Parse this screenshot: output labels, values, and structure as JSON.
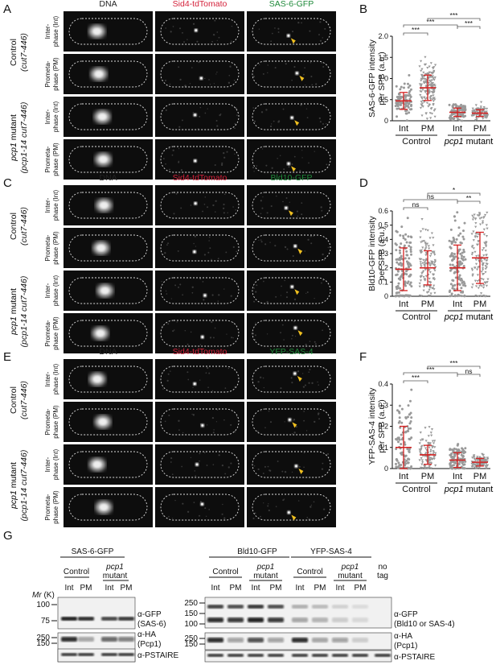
{
  "panel_letters": {
    "A": "A",
    "B": "B",
    "C": "C",
    "D": "D",
    "E": "E",
    "F": "F",
    "G": "G"
  },
  "micro": {
    "rowA": {
      "cols": [
        "DNA",
        "Sid4-tdTomato",
        "SAS-6-GFP"
      ],
      "col_colors": [
        "#222222",
        "#d4213a",
        "#1f8a3a"
      ]
    },
    "rowC": {
      "cols": [
        "DNA",
        "Sid4-tdTomato",
        "Bld10-GFP"
      ],
      "col_colors": [
        "#222222",
        "#d4213a",
        "#1f8a3a"
      ]
    },
    "rowE": {
      "cols": [
        "DNA",
        "Sid4-tdTomato",
        "YFP-SAS-4"
      ],
      "col_colors": [
        "#222222",
        "#d4213a",
        "#1f8a3a"
      ]
    },
    "group_control": {
      "name": "Control",
      "gene": "(cut7-446)"
    },
    "group_mutant": {
      "name_italic": "pcp1",
      "name_rest": " mutant",
      "gene": "(pcp1-14 cut7-446)"
    },
    "phase_int": {
      "l1": "Inter-",
      "l2": "phase (Int)"
    },
    "phase_pm": {
      "l1": "Prometa-",
      "l2": "phase (PM)"
    }
  },
  "chart_data": [
    {
      "type": "scatter",
      "panel": "B",
      "ylabel_l1": "SAS-6-GFP intensity",
      "ylabel_l2": "per SPB (a.u.)",
      "ylim": [
        0,
        2.0
      ],
      "yticks": [
        "0",
        "0.5",
        "1.0",
        "1.5",
        "2.0"
      ],
      "categories": [
        "Int",
        "PM",
        "Int",
        "PM"
      ],
      "groups": [
        {
          "name": "Control"
        },
        {
          "name_italic": "pcp1",
          "name_rest": " mutant"
        }
      ],
      "means": [
        0.47,
        0.78,
        0.2,
        0.18
      ],
      "sds": [
        0.2,
        0.3,
        0.1,
        0.08
      ],
      "n": [
        90,
        160,
        90,
        90
      ],
      "sig": [
        "***",
        "***",
        "***",
        "***"
      ],
      "point_color": "#999999",
      "mean_color": "#d42020"
    },
    {
      "type": "scatter",
      "panel": "D",
      "ylabel_l1": "Bld10-GFP intensity",
      "ylabel_l2": "per SPB (a.u.)",
      "ylim": [
        0,
        0.6
      ],
      "yticks": [
        "0",
        "0.1",
        "0.2",
        "0.3",
        "0.4",
        "0.5",
        "0.6"
      ],
      "categories": [
        "Int",
        "PM",
        "Int",
        "PM"
      ],
      "groups": [
        {
          "name": "Control"
        },
        {
          "name_italic": "pcp1",
          "name_rest": " mutant"
        }
      ],
      "means": [
        0.19,
        0.2,
        0.2,
        0.27
      ],
      "sds": [
        0.15,
        0.12,
        0.16,
        0.18
      ],
      "n": [
        130,
        130,
        130,
        130
      ],
      "sig": [
        "ns",
        "ns",
        "*",
        "**"
      ],
      "point_color": "#999999",
      "mean_color": "#d42020"
    },
    {
      "type": "scatter",
      "panel": "F",
      "ylabel_l1": "YFP-SAS-4 intensity",
      "ylabel_l2": "per SPB (a.u.)",
      "ylim": [
        0,
        0.4
      ],
      "yticks": [
        "0",
        "0.1",
        "0.2",
        "0.3",
        "0.4"
      ],
      "categories": [
        "Int",
        "PM",
        "Int",
        "PM"
      ],
      "groups": [
        {
          "name": "Control"
        },
        {
          "name_italic": "pcp1",
          "name_rest": " mutant"
        }
      ],
      "means": [
        0.1,
        0.065,
        0.04,
        0.03
      ],
      "sds": [
        0.1,
        0.045,
        0.035,
        0.018
      ],
      "n": [
        110,
        110,
        100,
        100
      ],
      "sig": [
        "***",
        "***",
        "***",
        "ns"
      ],
      "point_color": "#999999",
      "mean_color": "#d42020"
    }
  ],
  "blot": {
    "left": {
      "tag": "SAS-6-GFP",
      "group1": "Control",
      "group2_l1": "pcp1",
      "group2_l2": "mutant",
      "lanes": [
        "Int",
        "PM",
        "Int",
        "PM"
      ]
    },
    "right": {
      "tags": [
        "Bld10-GFP",
        "YFP-SAS-4"
      ],
      "lanes": [
        "Int",
        "PM",
        "Int",
        "PM"
      ],
      "notag": [
        "no",
        "tag"
      ]
    },
    "mr_label": "Mr (K)",
    "markers_left": [
      "100",
      "75",
      "250",
      "150"
    ],
    "markers_right": [
      "250",
      "150",
      "100",
      "250",
      "150"
    ],
    "ab_left": [
      {
        "l1": "α-GFP",
        "l2": "(SAS-6)"
      },
      {
        "l1": "α-HA",
        "l2": "(Pcp1)"
      },
      {
        "l1": "α-PSTAIRE",
        "l2": ""
      }
    ],
    "ab_right": [
      {
        "l1": "α-GFP",
        "l2": "(Bld10 or SAS-4)"
      },
      {
        "l1": "α-HA",
        "l2": "(Pcp1)"
      },
      {
        "l1": "α-PSTAIRE",
        "l2": ""
      }
    ]
  }
}
